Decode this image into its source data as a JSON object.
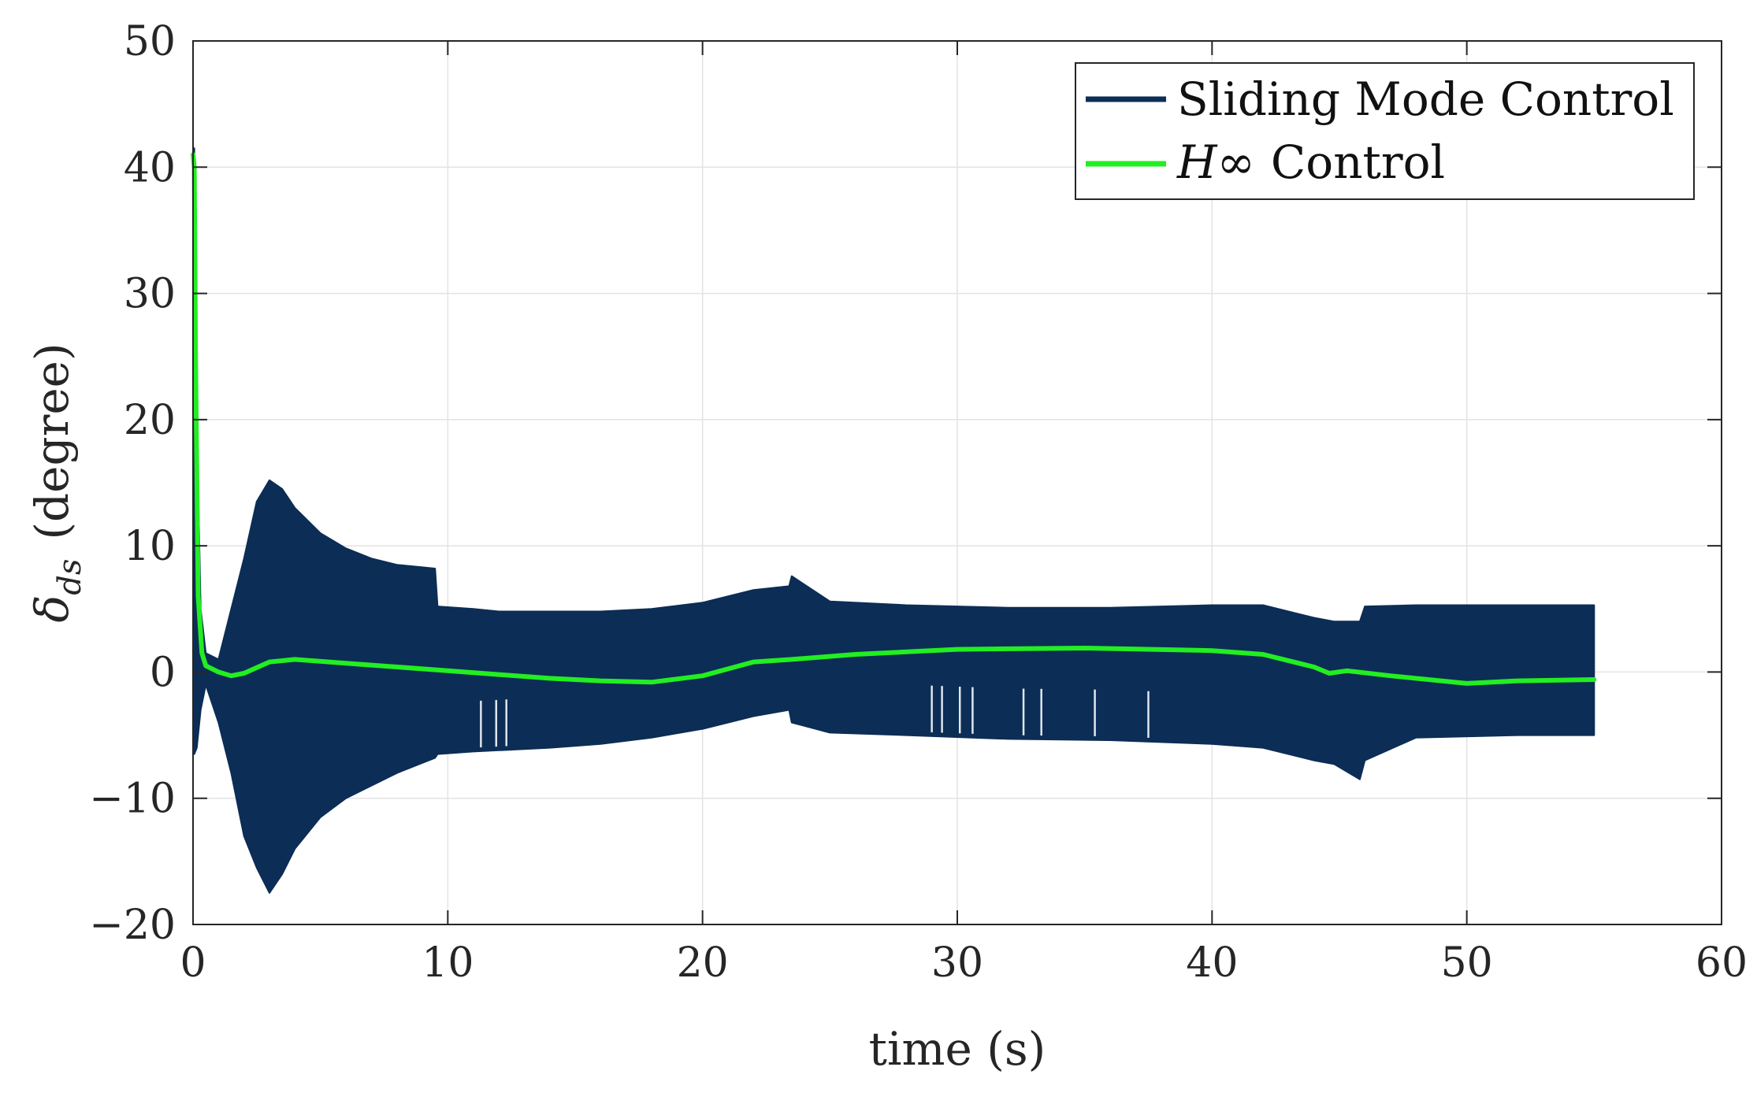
{
  "chart_data": {
    "type": "line",
    "title": "",
    "xlabel": "time (s)",
    "ylabel": {
      "symbol": "δ",
      "subscript": "ds",
      "unit": "(degree)"
    },
    "xlim": [
      0,
      60
    ],
    "ylim": [
      -20,
      50
    ],
    "xticks": [
      0,
      10,
      20,
      30,
      40,
      50,
      60
    ],
    "xtick_labels": [
      "0",
      "10",
      "20",
      "30",
      "40",
      "50",
      "60"
    ],
    "yticks": [
      -20,
      -10,
      0,
      10,
      20,
      30,
      40,
      50
    ],
    "ytick_labels": [
      "−20",
      "−10",
      "0",
      "10",
      "20",
      "30",
      "40",
      "50"
    ],
    "grid": true,
    "legend_position": "top-right",
    "series": [
      {
        "name": "Sliding Mode Control",
        "color": "#0c2d55",
        "style": "high-frequency oscillation band",
        "x": [
          0,
          0.05,
          0.15,
          0.3,
          0.5,
          1.0,
          1.5,
          2.0,
          2.5,
          3.0,
          3.5,
          4.0,
          5.0,
          6.0,
          7.0,
          8.0,
          9.0,
          9.5,
          9.6,
          11.0,
          12.0,
          14.0,
          16.0,
          18.0,
          20.0,
          22.0,
          23.4,
          23.5,
          25.0,
          28.0,
          32.0,
          36.0,
          40.0,
          42.0,
          44.0,
          44.8,
          45.8,
          46.0,
          48.0,
          52.0,
          55.0
        ],
        "upper": [
          41.5,
          41.5,
          20.0,
          5.0,
          1.5,
          1.0,
          5.0,
          9.0,
          13.5,
          15.2,
          14.5,
          13.0,
          11.0,
          9.8,
          9.0,
          8.5,
          8.3,
          8.2,
          5.2,
          5.0,
          4.8,
          4.8,
          4.8,
          5.0,
          5.5,
          6.5,
          6.8,
          7.6,
          5.6,
          5.3,
          5.1,
          5.1,
          5.3,
          5.3,
          4.3,
          4.0,
          4.0,
          5.2,
          5.3,
          5.3,
          5.3
        ],
        "lower": [
          -6.5,
          -6.5,
          -6.0,
          -3.0,
          -1.0,
          -4.0,
          -8.0,
          -13.0,
          -15.5,
          -17.5,
          -16.0,
          -14.0,
          -11.5,
          -10.0,
          -9.0,
          -8.0,
          -7.2,
          -6.8,
          -6.5,
          -6.3,
          -6.2,
          -6.0,
          -5.7,
          -5.2,
          -4.5,
          -3.5,
          -3.0,
          -4.0,
          -4.8,
          -5.0,
          -5.3,
          -5.4,
          -5.7,
          -6.0,
          -7.0,
          -7.3,
          -8.5,
          -7.0,
          -5.2,
          -5.0,
          -5.0
        ],
        "dropouts": [
          11.3,
          11.9,
          12.3,
          29.0,
          29.4,
          30.1,
          30.6,
          32.6,
          33.3,
          35.4,
          37.5
        ]
      },
      {
        "name": "H∞ Control",
        "color": "#22ee22",
        "x": [
          0,
          0.05,
          0.1,
          0.2,
          0.35,
          0.5,
          1.0,
          1.5,
          2.0,
          3.0,
          4.0,
          6.0,
          8.0,
          10.0,
          12.0,
          14.0,
          16.0,
          18.0,
          20.0,
          22.0,
          23.5,
          26.0,
          30.0,
          35.0,
          40.0,
          42.0,
          44.0,
          44.6,
          45.3,
          47.0,
          50.0,
          52.0,
          55.0
        ],
        "y": [
          41.0,
          40.0,
          25.0,
          6.0,
          1.5,
          0.5,
          0.0,
          -0.3,
          -0.1,
          0.8,
          1.0,
          0.7,
          0.4,
          0.1,
          -0.2,
          -0.5,
          -0.7,
          -0.8,
          -0.3,
          0.8,
          1.0,
          1.4,
          1.8,
          1.9,
          1.7,
          1.4,
          0.4,
          -0.1,
          0.1,
          -0.3,
          -0.9,
          -0.7,
          -0.6
        ]
      }
    ],
    "legend": {
      "entries": [
        {
          "label": "Sliding Mode Control",
          "math_prefix": "",
          "color": "#0c2d55"
        },
        {
          "label": "Control",
          "math_prefix": "H∞",
          "color": "#22ee22"
        }
      ]
    }
  }
}
